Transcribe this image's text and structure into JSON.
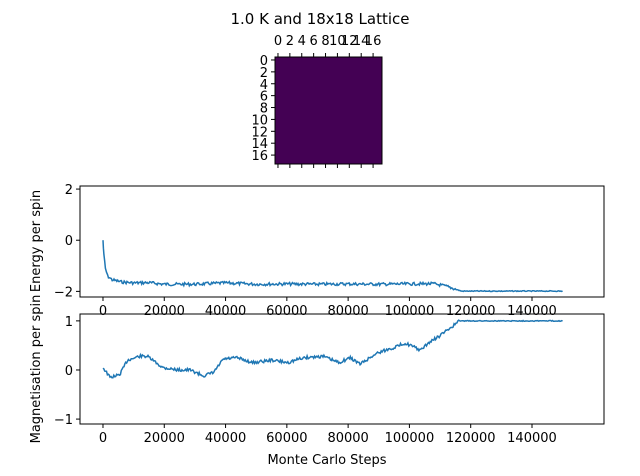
{
  "chart_data": [
    {
      "type": "heatmap",
      "title": "1.0 K and 18x18 Lattice",
      "rows": 18,
      "cols": 18,
      "uniform_value_color": "#440154",
      "xticks": [
        "0",
        "2",
        "4",
        "6",
        "8",
        "10",
        "12",
        "14",
        "16"
      ],
      "yticks": [
        "0",
        "2",
        "4",
        "6",
        "8",
        "10",
        "12",
        "14",
        "16"
      ]
    },
    {
      "type": "line",
      "ylabel": "Energy per spin",
      "xlabel": "",
      "xlim": [
        -7500,
        163500
      ],
      "ylim": [
        -2.22,
        2.12
      ],
      "xticks": [
        0,
        20000,
        40000,
        60000,
        80000,
        100000,
        120000,
        140000
      ],
      "yticks": [
        -2,
        0,
        2
      ],
      "color": "#1f77b4",
      "points": [
        [
          0,
          0
        ],
        [
          300,
          -0.6
        ],
        [
          800,
          -1.1
        ],
        [
          1500,
          -1.4
        ],
        [
          3000,
          -1.55
        ],
        [
          6000,
          -1.63
        ],
        [
          10000,
          -1.67
        ],
        [
          15000,
          -1.66
        ],
        [
          20000,
          -1.72
        ],
        [
          30000,
          -1.72
        ],
        [
          40000,
          -1.67
        ],
        [
          50000,
          -1.72
        ],
        [
          60000,
          -1.71
        ],
        [
          70000,
          -1.72
        ],
        [
          80000,
          -1.71
        ],
        [
          90000,
          -1.72
        ],
        [
          100000,
          -1.71
        ],
        [
          108000,
          -1.7
        ],
        [
          112000,
          -1.8
        ],
        [
          117000,
          -1.99
        ],
        [
          130000,
          -1.99
        ],
        [
          150000,
          -1.99
        ]
      ]
    },
    {
      "type": "line",
      "ylabel": "Magnetisation per spin",
      "xlabel": "Monte Carlo Steps",
      "xlim": [
        -7500,
        163500
      ],
      "ylim": [
        -1.1,
        1.14
      ],
      "xticks": [
        0,
        20000,
        40000,
        60000,
        80000,
        100000,
        120000,
        140000
      ],
      "yticks": [
        -1,
        0,
        1
      ],
      "color": "#1f77b4",
      "points": [
        [
          0,
          0.05
        ],
        [
          2300,
          -0.15
        ],
        [
          5400,
          -0.1
        ],
        [
          8000,
          0.2
        ],
        [
          11900,
          0.28
        ],
        [
          14400,
          0.28
        ],
        [
          19500,
          0.05
        ],
        [
          24600,
          0.0
        ],
        [
          28400,
          0.0
        ],
        [
          32900,
          -0.12
        ],
        [
          36100,
          -0.05
        ],
        [
          39300,
          0.22
        ],
        [
          43700,
          0.25
        ],
        [
          48800,
          0.15
        ],
        [
          55200,
          0.2
        ],
        [
          60300,
          0.15
        ],
        [
          65400,
          0.25
        ],
        [
          71800,
          0.28
        ],
        [
          76900,
          0.15
        ],
        [
          80700,
          0.25
        ],
        [
          83900,
          0.12
        ],
        [
          89600,
          0.35
        ],
        [
          94700,
          0.45
        ],
        [
          98600,
          0.55
        ],
        [
          103700,
          0.4
        ],
        [
          106200,
          0.55
        ],
        [
          110000,
          0.7
        ],
        [
          116400,
          1.0
        ],
        [
          150000,
          1.0
        ]
      ]
    }
  ]
}
